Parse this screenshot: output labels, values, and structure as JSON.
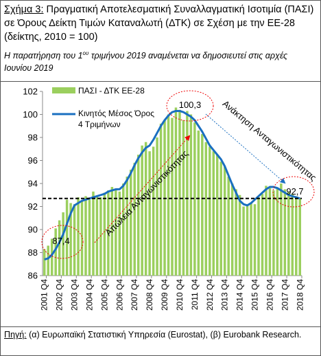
{
  "figure_label": "Σχήμα 3:",
  "note_parts": [
    "Η παρατήρηση του 1",
    "ου",
    " τριμήνου 2019 αναμένεται να δημοσιευτεί στις αρχές Ιουνίου 2019"
  ],
  "source_label": "Πηγή:",
  "source": " (α) Ευρωπαϊκή Στατιστική Υπηρεσία (Eurostat), (β) Eurobank Research.",
  "chart_data": {
    "type": "bar-line",
    "title": "Πραγματική Αποτελεσματική Συναλλαγματική Ισοτιμία (ΠΑΣΙ) σε Όρους Δείκτη Τιμών Καταναλωτή (ΔΤΚ) σε Σχέση με την ΕΕ-28 (δείκτης, 2010 = 100)",
    "categories": [
      "2001 Q4",
      null,
      null,
      null,
      "2002 Q4",
      null,
      null,
      null,
      "2003 Q4",
      null,
      null,
      null,
      "2004 Q4",
      null,
      null,
      null,
      "2005 Q4",
      null,
      null,
      null,
      "2006 Q4",
      null,
      null,
      null,
      "2007 Q4",
      null,
      null,
      null,
      "2008 Q4",
      null,
      null,
      null,
      "2009 Q4",
      null,
      null,
      null,
      "2010 Q4",
      null,
      null,
      null,
      "2011 Q4",
      null,
      null,
      null,
      "2012 Q4",
      null,
      null,
      null,
      "2013 Q4",
      null,
      null,
      null,
      "2014 Q4",
      null,
      null,
      null,
      "2015 Q4",
      null,
      null,
      null,
      "2016 Q4",
      null,
      null,
      null,
      "2017 Q4",
      null,
      null,
      null,
      "2018 Q4"
    ],
    "series": [
      {
        "name": "ΠΑΣΙ - ΔΤΚ ΕΕ-28",
        "type": "bar",
        "color": "#9bcf5e",
        "values": [
          88.3,
          88.6,
          89.2,
          90.1,
          90.8,
          91.5,
          92.6,
          92.3,
          92.2,
          92.8,
          92.5,
          92.9,
          92.6,
          93.3,
          92.9,
          92.8,
          93.2,
          93.4,
          93.7,
          93.5,
          93.3,
          94.0,
          94.6,
          95.2,
          95.8,
          96.5,
          97.3,
          97.6,
          96.8,
          97.2,
          98.0,
          99.2,
          99.5,
          100.0,
          99.7,
          100.6,
          100.4,
          99.5,
          100.3,
          100.0,
          99.3,
          98.6,
          98.3,
          97.6,
          97.2,
          96.8,
          96.5,
          95.9,
          95.5,
          94.6,
          94.0,
          93.5,
          93.0,
          92.0,
          92.1,
          92.3,
          92.2,
          92.8,
          93.1,
          93.8,
          93.6,
          93.4,
          93.6,
          94.0,
          93.5,
          93.3,
          93.1,
          92.9,
          92.7
        ]
      },
      {
        "name": "Κινητός Μέσος Όρος 4 Τριμήνων",
        "type": "line",
        "color": "#1a6fc0",
        "values": [
          87.4,
          87.5,
          87.8,
          88.3,
          88.9,
          89.6,
          90.5,
          91.4,
          92.1,
          92.3,
          92.5,
          92.6,
          92.7,
          92.8,
          92.9,
          93.0,
          93.1,
          93.3,
          93.4,
          93.5,
          93.5,
          93.8,
          94.3,
          94.9,
          95.6,
          96.2,
          96.7,
          97.1,
          97.3,
          97.8,
          98.4,
          99.0,
          99.5,
          99.9,
          100.2,
          100.3,
          100.3,
          100.2,
          100.0,
          99.8,
          99.5,
          99.0,
          98.5,
          97.9,
          97.3,
          96.9,
          96.5,
          96.1,
          95.5,
          94.7,
          93.9,
          93.2,
          92.5,
          92.2,
          92.1,
          92.3,
          92.6,
          92.9,
          93.2,
          93.5,
          93.7,
          93.7,
          93.6,
          93.4,
          93.2,
          93.0,
          92.9,
          92.8,
          92.7
        ]
      }
    ],
    "reference_line": 92.7,
    "ylim": [
      86,
      102
    ],
    "yticks": [
      86,
      88,
      90,
      92,
      94,
      96,
      98,
      100,
      102
    ],
    "annotations": [
      {
        "value": 100.3,
        "label": "100,3"
      },
      {
        "value": 87.4,
        "label": "87,4"
      },
      {
        "value": 92.7,
        "label": "92,7"
      }
    ],
    "arrow_labels": [
      "Απώλεια Ανταγωνιστικότητας",
      "Ανάκτηση Ανταγωνιστικότητας"
    ]
  }
}
